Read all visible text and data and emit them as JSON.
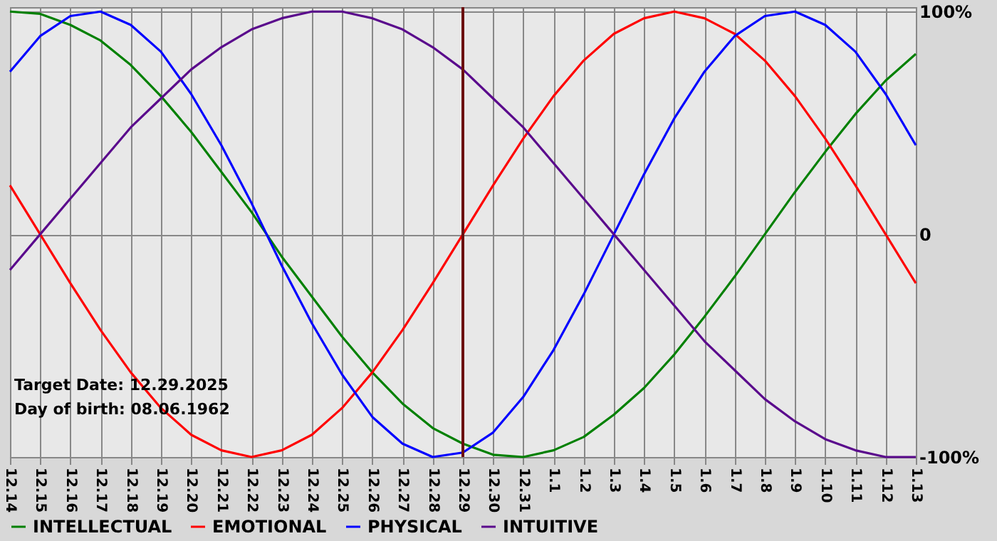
{
  "chart_data": {
    "type": "line",
    "categories": [
      "12.14",
      "12.15",
      "12.16",
      "12.17",
      "12.18",
      "12.19",
      "12.20",
      "12.21",
      "12.22",
      "12.23",
      "12.24",
      "12.25",
      "12.26",
      "12.27",
      "12.28",
      "12.29",
      "12.30",
      "12.31",
      "1.1",
      "1.2",
      "1.3",
      "1.4",
      "1.5",
      "1.6",
      "1.7",
      "1.8",
      "1.9",
      "1.10",
      "1.11",
      "1.12",
      "1.13"
    ],
    "series": [
      {
        "name": "INTELLECTUAL",
        "color": "#008000",
        "values": [
          100,
          99,
          94,
          87,
          76,
          62,
          46,
          28,
          10,
          -10,
          -28,
          -46,
          -62,
          -76,
          -87,
          -94,
          -99,
          -100,
          -97,
          -91,
          -81,
          -69,
          -54,
          -37,
          -19,
          0,
          19,
          37,
          54,
          69,
          81
        ]
      },
      {
        "name": "EMOTIONAL",
        "color": "#ff0000",
        "values": [
          22,
          0,
          -22,
          -43,
          -62,
          -78,
          -90,
          -97,
          -100,
          -97,
          -90,
          -78,
          -62,
          -43,
          -22,
          0,
          22,
          43,
          62,
          78,
          90,
          97,
          100,
          97,
          90,
          78,
          62,
          43,
          22,
          0,
          -22
        ]
      },
      {
        "name": "PHYSICAL",
        "color": "#0000ff",
        "values": [
          73,
          89,
          98,
          100,
          94,
          82,
          63,
          40,
          14,
          -14,
          -40,
          -63,
          -82,
          -94,
          -100,
          -98,
          -89,
          -73,
          -52,
          -27,
          0,
          27,
          52,
          73,
          89,
          98,
          100,
          94,
          82,
          63,
          40
        ]
      },
      {
        "name": "INTUITIVE",
        "color": "#5a0a8c",
        "values": [
          -16,
          0,
          16,
          32,
          48,
          61,
          74,
          84,
          92,
          97,
          100,
          100,
          97,
          92,
          84,
          74,
          61,
          48,
          32,
          16,
          0,
          -16,
          -32,
          -48,
          -61,
          -74,
          -84,
          -92,
          -97,
          -100,
          -100
        ]
      }
    ],
    "ylim": [
      -100,
      102
    ],
    "yticks": [
      {
        "value": 100,
        "label": "100%"
      },
      {
        "value": 0,
        "label": "0"
      },
      {
        "value": -100,
        "label": "-100%"
      }
    ],
    "ref_lines": [
      {
        "axis": "x",
        "value": "12.29",
        "color": "#6b1010"
      }
    ],
    "annotations": [
      "Target Date: 12.29.2025",
      "Day of birth: 08.06.1962"
    ],
    "grid": true,
    "legend": "bottom",
    "marker": "none",
    "line_style": "solid"
  }
}
